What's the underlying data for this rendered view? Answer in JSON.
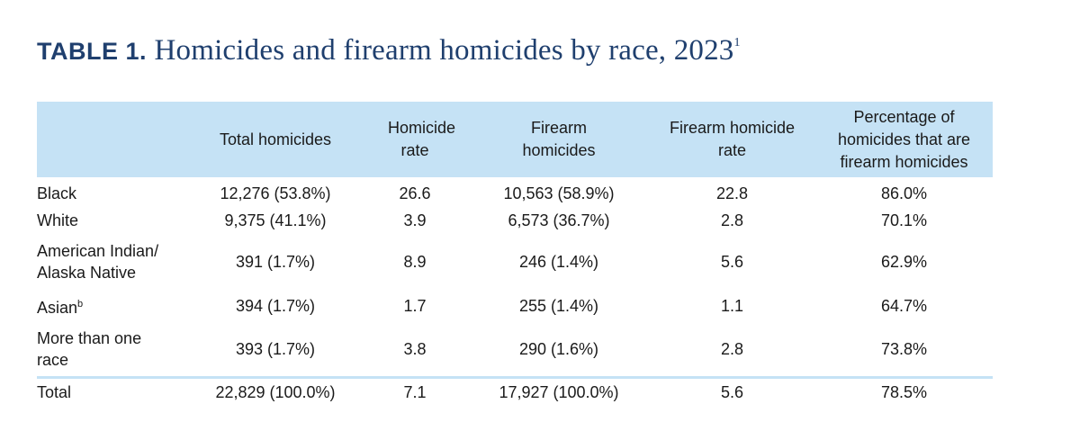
{
  "title": {
    "prefix": "TABLE 1.",
    "text": "Homicides and firearm homicides by race, 2023",
    "footnote": "1"
  },
  "table": {
    "columns": [
      "",
      "Total homicides",
      "Homicide rate",
      "Firearm homicides",
      "Firearm homicide rate",
      "Percentage of homicides that are firearm homicides"
    ],
    "rows": [
      {
        "race": "Black",
        "race_sup": "",
        "total": "12,276 (53.8%)",
        "rate": "26.6",
        "firearm": "10,563 (58.9%)",
        "firearm_rate": "22.8",
        "pct": "86.0%"
      },
      {
        "race": "White",
        "race_sup": "",
        "total": "9,375 (41.1%)",
        "rate": "3.9",
        "firearm": "6,573 (36.7%)",
        "firearm_rate": "2.8",
        "pct": "70.1%"
      },
      {
        "race": "American Indian/ Alaska Native",
        "race_sup": "",
        "total": "391 (1.7%)",
        "rate": "8.9",
        "firearm": "246 (1.4%)",
        "firearm_rate": "5.6",
        "pct": "62.9%"
      },
      {
        "race": "Asian",
        "race_sup": "b",
        "total": "394 (1.7%)",
        "rate": "1.7",
        "firearm": "255 (1.4%)",
        "firearm_rate": "1.1",
        "pct": "64.7%"
      },
      {
        "race": "More than one race",
        "race_sup": "",
        "total": "393 (1.7%)",
        "rate": "3.8",
        "firearm": "290 (1.6%)",
        "firearm_rate": "2.8",
        "pct": "73.8%"
      }
    ],
    "total_row": {
      "race": "Total",
      "total": "22,829 (100.0%)",
      "rate": "7.1",
      "firearm": "17,927 (100.0%)",
      "firearm_rate": "5.6",
      "pct": "78.5%"
    }
  }
}
